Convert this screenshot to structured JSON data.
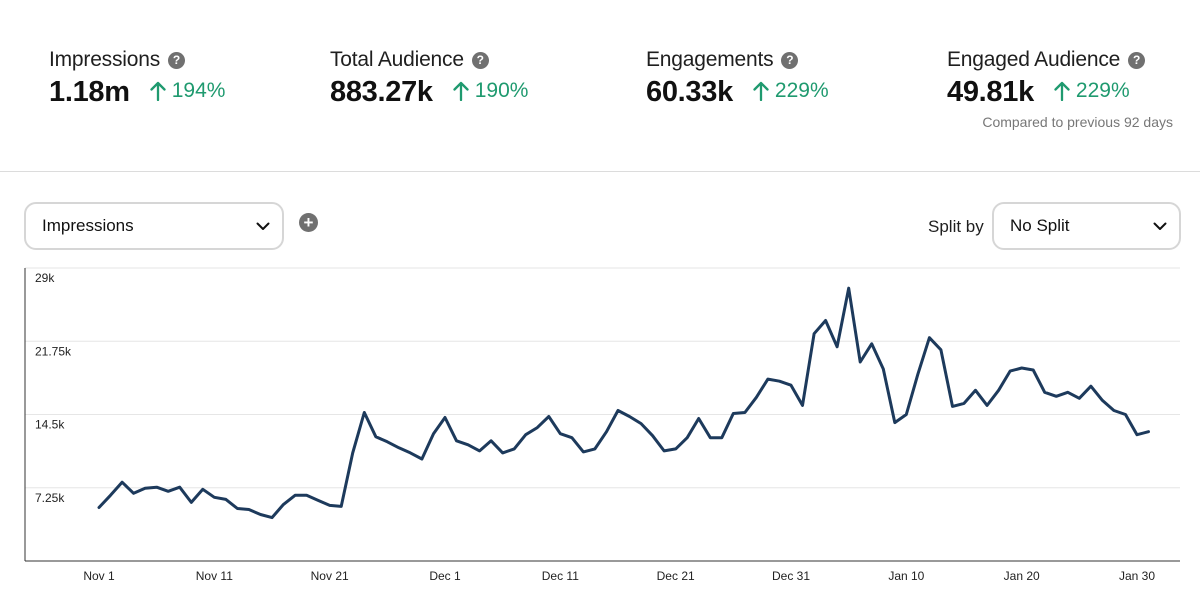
{
  "stats": [
    {
      "label": "Impressions",
      "value": "1.18m",
      "delta": "194%"
    },
    {
      "label": "Total Audience",
      "value": "883.27k",
      "delta": "190%"
    },
    {
      "label": "Engagements",
      "value": "60.33k",
      "delta": "229%"
    },
    {
      "label": "Engaged Audience",
      "value": "49.81k",
      "delta": "229%"
    }
  ],
  "compared_text": "Compared to previous 92 days",
  "controls": {
    "metric_select": "Impressions",
    "split_label": "Split by",
    "split_select": "No Split"
  },
  "colors": {
    "line": "#1d3a5c",
    "positive": "#1f9a6f",
    "grid": "#e6e6e6"
  },
  "icons": [
    "help-icon",
    "arrow-up-icon",
    "chevron-down-icon",
    "add-icon"
  ],
  "chart_data": {
    "type": "line",
    "title": "",
    "xlabel": "",
    "ylabel": "",
    "ylim": [
      0,
      29000
    ],
    "yticks": [
      {
        "value": 7250,
        "label": "7.25k"
      },
      {
        "value": 14500,
        "label": "14.5k"
      },
      {
        "value": 21750,
        "label": "21.75k"
      },
      {
        "value": 29000,
        "label": "29k"
      }
    ],
    "xticks": [
      {
        "date": "2023-11-01",
        "label": "Nov 1"
      },
      {
        "date": "2023-11-11",
        "label": "Nov 11"
      },
      {
        "date": "2023-11-21",
        "label": "Nov 21"
      },
      {
        "date": "2023-12-01",
        "label": "Dec 1"
      },
      {
        "date": "2023-12-11",
        "label": "Dec 11"
      },
      {
        "date": "2023-12-21",
        "label": "Dec 21"
      },
      {
        "date": "2023-12-31",
        "label": "Dec 31"
      },
      {
        "date": "2024-01-10",
        "label": "Jan 10"
      },
      {
        "date": "2024-01-20",
        "label": "Jan 20"
      },
      {
        "date": "2024-01-30",
        "label": "Jan 30"
      }
    ],
    "grid": true,
    "series": [
      {
        "values": [
          {
            "x": "2023-11-01",
            "y": 5300
          },
          {
            "x": "2023-11-02",
            "y": 6500
          },
          {
            "x": "2023-11-03",
            "y": 7800
          },
          {
            "x": "2023-11-04",
            "y": 6700
          },
          {
            "x": "2023-11-05",
            "y": 7200
          },
          {
            "x": "2023-11-06",
            "y": 7300
          },
          {
            "x": "2023-11-07",
            "y": 6900
          },
          {
            "x": "2023-11-08",
            "y": 7300
          },
          {
            "x": "2023-11-09",
            "y": 5800
          },
          {
            "x": "2023-11-10",
            "y": 7100
          },
          {
            "x": "2023-11-11",
            "y": 6300
          },
          {
            "x": "2023-11-12",
            "y": 6100
          },
          {
            "x": "2023-11-13",
            "y": 5200
          },
          {
            "x": "2023-11-14",
            "y": 5100
          },
          {
            "x": "2023-11-15",
            "y": 4600
          },
          {
            "x": "2023-11-16",
            "y": 4300
          },
          {
            "x": "2023-11-17",
            "y": 5600
          },
          {
            "x": "2023-11-18",
            "y": 6500
          },
          {
            "x": "2023-11-19",
            "y": 6500
          },
          {
            "x": "2023-11-20",
            "y": 6000
          },
          {
            "x": "2023-11-21",
            "y": 5500
          },
          {
            "x": "2023-11-22",
            "y": 5400
          },
          {
            "x": "2023-11-23",
            "y": 10700
          },
          {
            "x": "2023-11-24",
            "y": 14700
          },
          {
            "x": "2023-11-25",
            "y": 12300
          },
          {
            "x": "2023-11-26",
            "y": 11800
          },
          {
            "x": "2023-11-27",
            "y": 11200
          },
          {
            "x": "2023-11-28",
            "y": 10700
          },
          {
            "x": "2023-11-29",
            "y": 10100
          },
          {
            "x": "2023-11-30",
            "y": 12600
          },
          {
            "x": "2023-12-01",
            "y": 14200
          },
          {
            "x": "2023-12-02",
            "y": 11900
          },
          {
            "x": "2023-12-03",
            "y": 11500
          },
          {
            "x": "2023-12-04",
            "y": 10900
          },
          {
            "x": "2023-12-05",
            "y": 11900
          },
          {
            "x": "2023-12-06",
            "y": 10700
          },
          {
            "x": "2023-12-07",
            "y": 11100
          },
          {
            "x": "2023-12-08",
            "y": 12500
          },
          {
            "x": "2023-12-09",
            "y": 13200
          },
          {
            "x": "2023-12-10",
            "y": 14300
          },
          {
            "x": "2023-12-11",
            "y": 12600
          },
          {
            "x": "2023-12-12",
            "y": 12200
          },
          {
            "x": "2023-12-13",
            "y": 10800
          },
          {
            "x": "2023-12-14",
            "y": 11100
          },
          {
            "x": "2023-12-15",
            "y": 12800
          },
          {
            "x": "2023-12-16",
            "y": 14900
          },
          {
            "x": "2023-12-17",
            "y": 14300
          },
          {
            "x": "2023-12-18",
            "y": 13600
          },
          {
            "x": "2023-12-19",
            "y": 12400
          },
          {
            "x": "2023-12-20",
            "y": 10900
          },
          {
            "x": "2023-12-21",
            "y": 11100
          },
          {
            "x": "2023-12-22",
            "y": 12200
          },
          {
            "x": "2023-12-23",
            "y": 14100
          },
          {
            "x": "2023-12-24",
            "y": 12200
          },
          {
            "x": "2023-12-25",
            "y": 12200
          },
          {
            "x": "2023-12-26",
            "y": 14600
          },
          {
            "x": "2023-12-27",
            "y": 14700
          },
          {
            "x": "2023-12-28",
            "y": 16200
          },
          {
            "x": "2023-12-29",
            "y": 18000
          },
          {
            "x": "2023-12-30",
            "y": 17800
          },
          {
            "x": "2023-12-31",
            "y": 17400
          },
          {
            "x": "2024-01-01",
            "y": 15400
          },
          {
            "x": "2024-01-02",
            "y": 22500
          },
          {
            "x": "2024-01-03",
            "y": 23800
          },
          {
            "x": "2024-01-04",
            "y": 21200
          },
          {
            "x": "2024-01-05",
            "y": 27000
          },
          {
            "x": "2024-01-06",
            "y": 19700
          },
          {
            "x": "2024-01-07",
            "y": 21500
          },
          {
            "x": "2024-01-08",
            "y": 19000
          },
          {
            "x": "2024-01-09",
            "y": 13700
          },
          {
            "x": "2024-01-10",
            "y": 14500
          },
          {
            "x": "2024-01-11",
            "y": 18500
          },
          {
            "x": "2024-01-12",
            "y": 22100
          },
          {
            "x": "2024-01-13",
            "y": 20900
          },
          {
            "x": "2024-01-14",
            "y": 15300
          },
          {
            "x": "2024-01-15",
            "y": 15600
          },
          {
            "x": "2024-01-16",
            "y": 16900
          },
          {
            "x": "2024-01-17",
            "y": 15400
          },
          {
            "x": "2024-01-18",
            "y": 16900
          },
          {
            "x": "2024-01-19",
            "y": 18800
          },
          {
            "x": "2024-01-20",
            "y": 19100
          },
          {
            "x": "2024-01-21",
            "y": 18900
          },
          {
            "x": "2024-01-22",
            "y": 16700
          },
          {
            "x": "2024-01-23",
            "y": 16300
          },
          {
            "x": "2024-01-24",
            "y": 16700
          },
          {
            "x": "2024-01-25",
            "y": 16100
          },
          {
            "x": "2024-01-26",
            "y": 17300
          },
          {
            "x": "2024-01-27",
            "y": 15900
          },
          {
            "x": "2024-01-28",
            "y": 14900
          },
          {
            "x": "2024-01-29",
            "y": 14500
          },
          {
            "x": "2024-01-30",
            "y": 12500
          },
          {
            "x": "2024-01-31",
            "y": 12800
          }
        ]
      }
    ]
  }
}
